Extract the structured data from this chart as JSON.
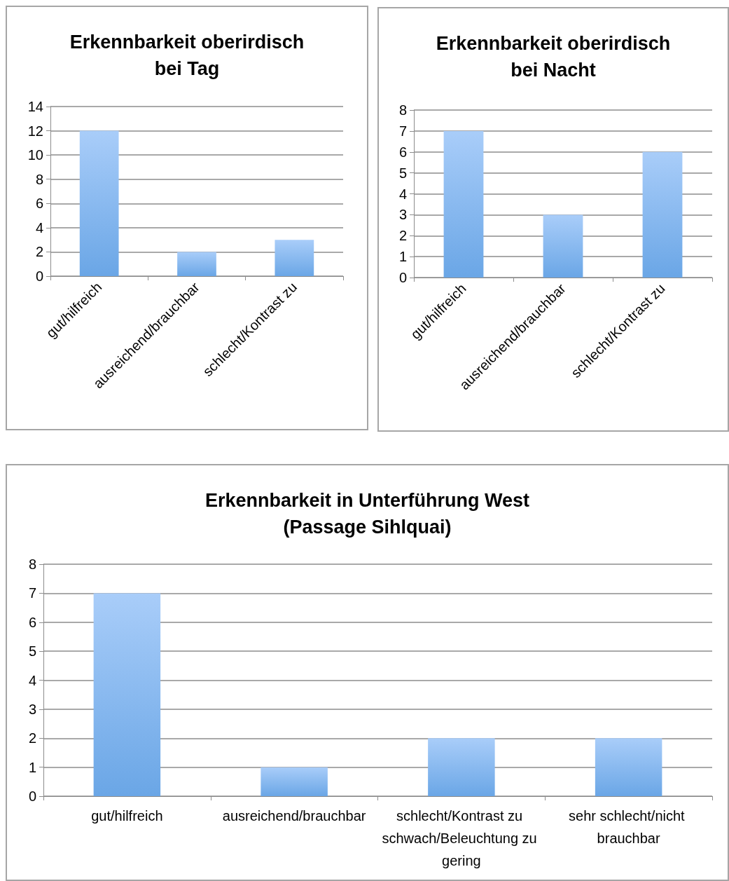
{
  "chart_data": [
    {
      "type": "bar",
      "title": "Erkennbarkeit oberirdisch\nbei Tag",
      "categories": [
        "gut/hilfreich",
        "ausreichend/brauchbar",
        "schlecht/Kontrast zu"
      ],
      "values": [
        12,
        2,
        3
      ],
      "color": "#6aa6e6",
      "ylim": [
        0,
        14
      ],
      "yticks": [
        0,
        2,
        4,
        6,
        8,
        10,
        12,
        14
      ],
      "grid": "y"
    },
    {
      "type": "bar",
      "title": "Erkennbarkeit oberirdisch\nbei Nacht",
      "categories": [
        "gut/hilfreich",
        "ausreichend/brauchbar",
        "schlecht/Kontrast zu"
      ],
      "values": [
        7,
        3,
        6
      ],
      "color": "#6aa6e6",
      "ylim": [
        0,
        8
      ],
      "yticks": [
        0,
        1,
        2,
        3,
        4,
        5,
        6,
        7,
        8
      ],
      "grid": "y"
    },
    {
      "type": "bar",
      "title": "Erkennbarkeit in Unterführung West\n(Passage Sihlquai)",
      "categories": [
        "gut/hilfreich",
        "ausreichend/brauchbar",
        "schlecht/Kontrast zu schwach/Beleuchtung zu gering",
        "sehr schlecht/nicht brauchbar"
      ],
      "values": [
        7,
        1,
        2,
        2
      ],
      "color": "#6aa6e6",
      "ylim": [
        0,
        8
      ],
      "yticks": [
        0,
        1,
        2,
        3,
        4,
        5,
        6,
        7,
        8
      ],
      "grid": "y"
    }
  ]
}
